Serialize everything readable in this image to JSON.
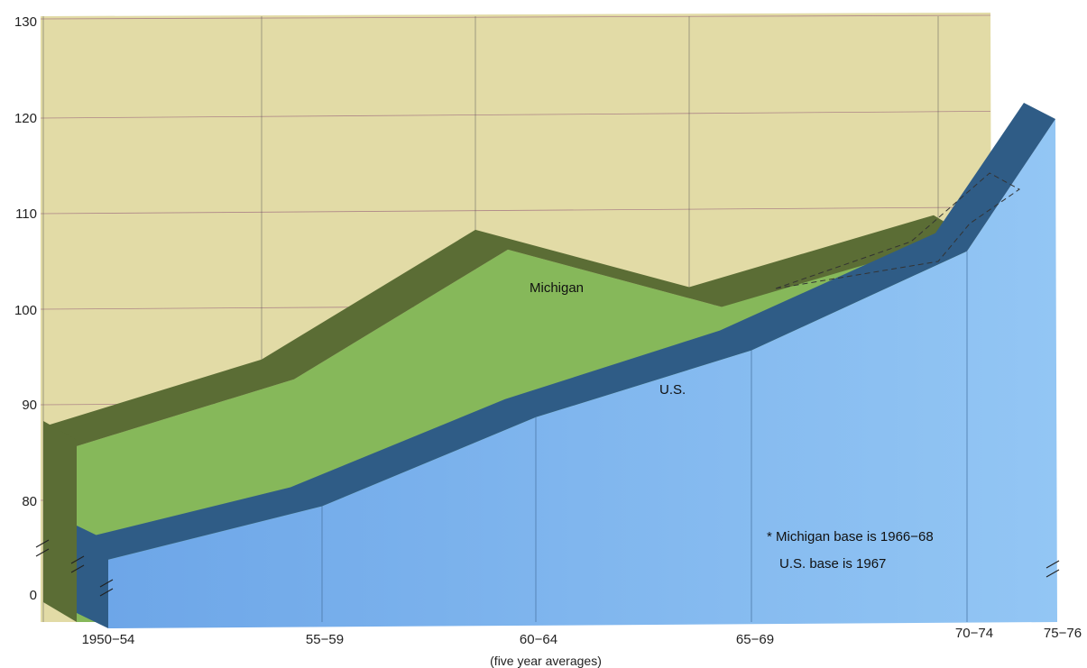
{
  "chart_data": {
    "type": "area",
    "categories": [
      "1950−54",
      "55−59",
      "60−64",
      "65−69",
      "70−74",
      "75−76"
    ],
    "series": [
      {
        "name": "Michigan",
        "values": [
          88,
          95.5,
          108.5,
          102.5,
          110.5,
          null
        ],
        "color": "#86b85a"
      },
      {
        "name": "U.S.",
        "values": [
          77,
          82.5,
          92,
          99,
          109,
          121.5
        ],
        "color": "#7fb6f0"
      }
    ],
    "y_ticks": [
      "0",
      "80",
      "90",
      "100",
      "110",
      "120",
      "130"
    ],
    "ylim": [
      70,
      130
    ],
    "y_axis_break": true,
    "xlabel": "(five year averages)",
    "ylabel": "",
    "annotations": [
      "* Michigan base is 1966−68",
      "U.S. base is 1967"
    ],
    "grid": true,
    "colors": {
      "background_panel": "#e2dba6",
      "michigan_face": "#86b85a",
      "michigan_edge": "#5b6d35",
      "us_face": "#7fb6f0",
      "us_edge": "#2f5c86"
    }
  }
}
